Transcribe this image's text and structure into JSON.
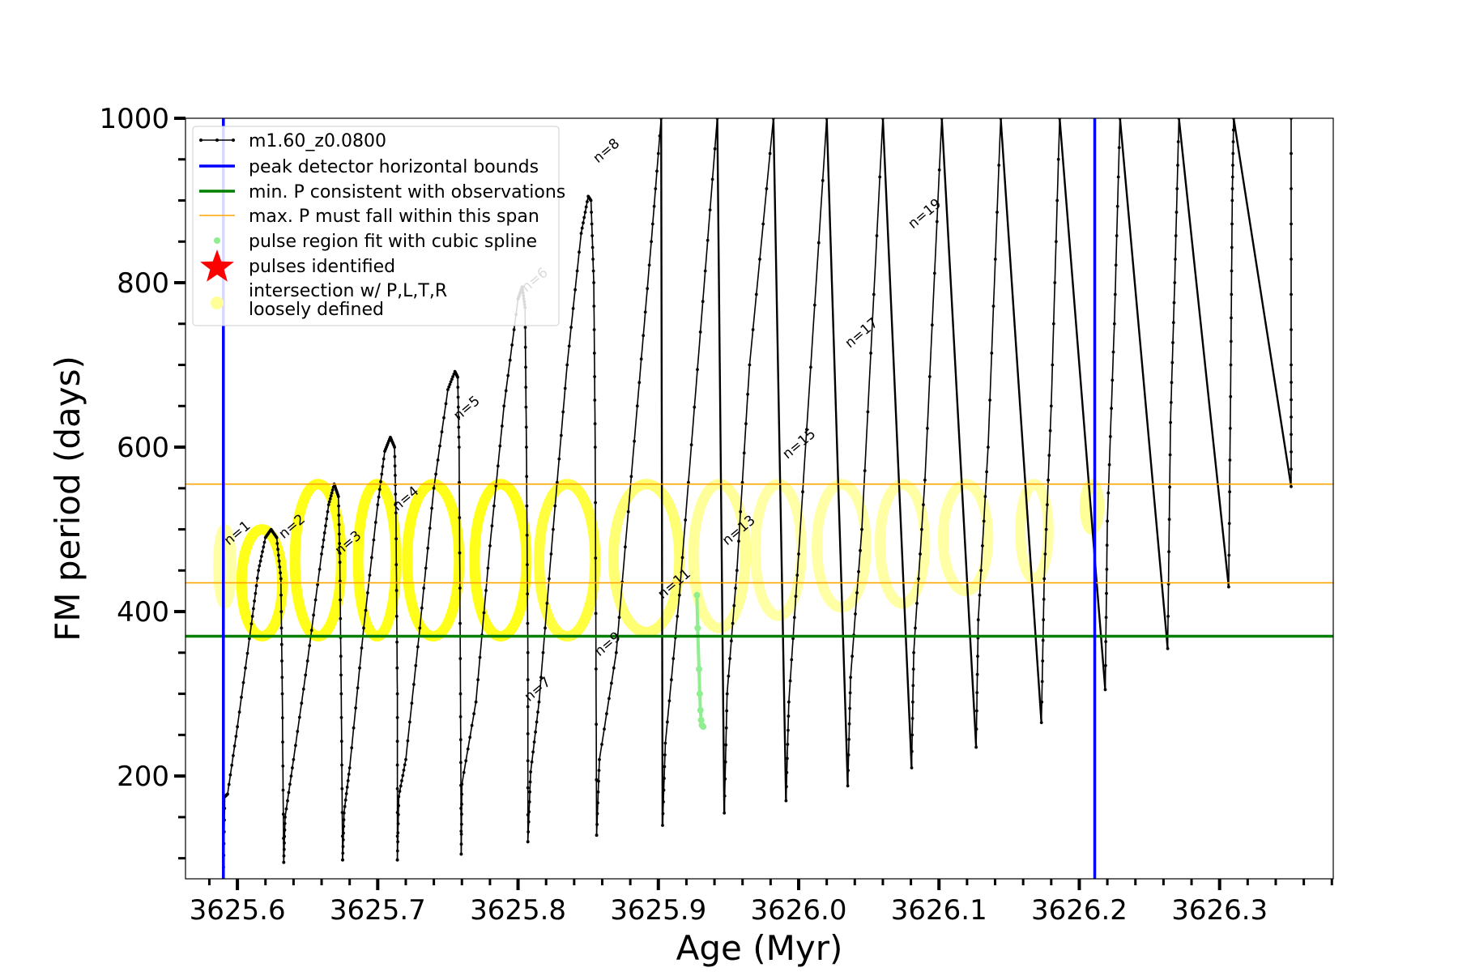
{
  "chart_data": {
    "type": "line",
    "title": "",
    "xlabel": "Age (Myr)",
    "ylabel": "FM period (days)",
    "xlim": [
      3625.563,
      3626.381
    ],
    "ylim": [
      75,
      1000
    ],
    "x_major_ticks": [
      3625.6,
      3625.7,
      3625.8,
      3625.9,
      3626.0,
      3626.1,
      3626.2,
      3626.3
    ],
    "x_tick_labels": [
      "3625.6",
      "3625.7",
      "3625.8",
      "3625.9",
      "3626.0",
      "3626.1",
      "3626.2",
      "3626.3"
    ],
    "x_minor_step": 0.02,
    "y_major_ticks": [
      200,
      400,
      600,
      800,
      1000
    ],
    "y_tick_labels": [
      "200",
      "400",
      "600",
      "800",
      "1000"
    ],
    "y_minor_step": 50,
    "grid": false,
    "legend_position": "top-left",
    "legend": [
      {
        "label": "m1.60_z0.0800",
        "kind": "line-marker",
        "color": "#000000"
      },
      {
        "label": "peak detector horizontal bounds",
        "kind": "line",
        "color": "#0000ff"
      },
      {
        "label": "min. P consistent with observations",
        "kind": "line",
        "color": "#008000"
      },
      {
        "label": "max. P must fall within this span",
        "kind": "line-thin",
        "color": "#ffa500"
      },
      {
        "label": "pulse region fit with cubic spline",
        "kind": "dot",
        "color": "#90ee90"
      },
      {
        "label": "pulses identified",
        "kind": "star",
        "color": "#ff0000"
      },
      {
        "label": "intersection w/ P,L,T,R",
        "label2": "loosely defined",
        "kind": "blob",
        "color": "#ffff99"
      }
    ],
    "reference_lines": {
      "vertical_blue": [
        3625.59,
        3626.211
      ],
      "horizontal_green": 370,
      "horizontal_orange": [
        435,
        555
      ]
    },
    "series": [
      {
        "name": "m1.60_z0.0800",
        "color": "#000000",
        "segments": [
          [
            [
              3625.59,
              75
            ],
            [
              3625.591,
              175
            ],
            [
              3625.593,
              178
            ],
            [
              3625.6,
              260
            ],
            [
              3625.61,
              385
            ],
            [
              3625.615,
              450
            ],
            [
              3625.62,
              490
            ],
            [
              3625.624,
              500
            ],
            [
              3625.628,
              490
            ],
            [
              3625.631,
              440
            ],
            [
              3625.632,
              300
            ],
            [
              3625.633,
              95
            ]
          ],
          [
            [
              3625.633,
              95
            ],
            [
              3625.634,
              150
            ],
            [
              3625.64,
              220
            ],
            [
              3625.65,
              340
            ],
            [
              3625.66,
              470
            ],
            [
              3625.665,
              530
            ],
            [
              3625.669,
              555
            ],
            [
              3625.672,
              540
            ],
            [
              3625.673,
              460
            ],
            [
              3625.674,
              300
            ],
            [
              3625.675,
              98
            ]
          ],
          [
            [
              3625.675,
              98
            ],
            [
              3625.676,
              155
            ],
            [
              3625.68,
              210
            ],
            [
              3625.69,
              380
            ],
            [
              3625.7,
              530
            ],
            [
              3625.705,
              595
            ],
            [
              3625.709,
              612
            ],
            [
              3625.712,
              600
            ],
            [
              3625.713,
              520
            ],
            [
              3625.714,
              300
            ],
            [
              3625.714,
              98
            ]
          ],
          [
            [
              3625.714,
              98
            ],
            [
              3625.715,
              175
            ],
            [
              3625.72,
              220
            ],
            [
              3625.73,
              380
            ],
            [
              3625.74,
              550
            ],
            [
              3625.75,
              670
            ],
            [
              3625.755,
              692
            ],
            [
              3625.757,
              685
            ],
            [
              3625.758,
              600
            ],
            [
              3625.759,
              300
            ],
            [
              3625.7595,
              105
            ]
          ],
          [
            [
              3625.7595,
              105
            ],
            [
              3625.76,
              190
            ],
            [
              3625.77,
              290
            ],
            [
              3625.78,
              480
            ],
            [
              3625.79,
              650
            ],
            [
              3625.8,
              780
            ],
            [
              3625.803,
              795
            ],
            [
              3625.805,
              770
            ],
            [
              3625.806,
              600
            ],
            [
              3625.807,
              350
            ],
            [
              3625.807,
              120
            ]
          ],
          [
            [
              3625.807,
              120
            ],
            [
              3625.809,
              205
            ],
            [
              3625.815,
              290
            ],
            [
              3625.825,
              500
            ],
            [
              3625.835,
              700
            ],
            [
              3625.845,
              860
            ],
            [
              3625.85,
              905
            ],
            [
              3625.852,
              900
            ],
            [
              3625.854,
              800
            ],
            [
              3625.855,
              600
            ],
            [
              3625.856,
              128
            ]
          ],
          [
            [
              3625.856,
              128
            ],
            [
              3625.858,
              220
            ],
            [
              3625.87,
              350
            ],
            [
              3625.885,
              650
            ],
            [
              3625.895,
              850
            ],
            [
              3625.902,
              1000
            ]
          ],
          [
            [
              3625.903,
              140
            ],
            [
              3625.905,
              240
            ],
            [
              3625.915,
              420
            ],
            [
              3625.93,
              740
            ],
            [
              3625.942,
              1000
            ]
          ],
          [
            [
              3625.947,
              155
            ],
            [
              3625.949,
              300
            ],
            [
              3625.956,
              450
            ],
            [
              3625.965,
              700
            ],
            [
              3625.982,
              1000
            ]
          ],
          [
            [
              3625.991,
              170
            ],
            [
              3625.993,
              290
            ],
            [
              3626.0,
              470
            ],
            [
              3626.02,
              1000
            ]
          ],
          [
            [
              3626.035,
              188
            ],
            [
              3626.037,
              320
            ],
            [
              3626.045,
              500
            ],
            [
              3626.06,
              1000
            ]
          ],
          [
            [
              3626.0805,
              210
            ],
            [
              3626.082,
              350
            ],
            [
              3626.09,
              560
            ],
            [
              3626.102,
              1000
            ]
          ],
          [
            [
              3626.1265,
              235
            ],
            [
              3626.128,
              390
            ],
            [
              3626.135,
              600
            ],
            [
              3626.144,
              1000
            ]
          ],
          [
            [
              3626.173,
              265
            ],
            [
              3626.175,
              440
            ],
            [
              3626.18,
              650
            ],
            [
              3626.186,
              1000
            ]
          ],
          [
            [
              3626.2185,
              305
            ],
            [
              3626.22,
              510
            ],
            [
              3626.225,
              750
            ],
            [
              3626.229,
              1000
            ]
          ],
          [
            [
              3626.263,
              355
            ],
            [
              3626.265,
              630
            ],
            [
              3626.268,
              800
            ],
            [
              3626.271,
              1000
            ]
          ],
          [
            [
              3626.3065,
              430
            ],
            [
              3626.308,
              700
            ],
            [
              3626.309,
              900
            ],
            [
              3626.31,
              1000
            ]
          ],
          [
            [
              3626.351,
              552
            ],
            [
              3626.351,
              700
            ],
            [
              3626.351,
              1000
            ]
          ]
        ],
        "descents": [
          [
            3625.902,
            1000,
            3625.903,
            140
          ],
          [
            3625.942,
            1000,
            3625.947,
            155
          ],
          [
            3625.982,
            1000,
            3625.991,
            170
          ],
          [
            3626.02,
            1000,
            3626.035,
            188
          ],
          [
            3626.06,
            1000,
            3626.0805,
            210
          ],
          [
            3626.102,
            1000,
            3626.1265,
            235
          ],
          [
            3626.144,
            1000,
            3626.173,
            265
          ],
          [
            3626.186,
            1000,
            3626.2185,
            305
          ],
          [
            3626.229,
            1000,
            3626.263,
            355
          ],
          [
            3626.271,
            1000,
            3626.3065,
            430
          ],
          [
            3626.31,
            1000,
            3626.351,
            552
          ]
        ]
      }
    ],
    "pulse_labels": [
      {
        "text": "n=1",
        "x": 3625.594,
        "y": 480
      },
      {
        "text": "n=2",
        "x": 3625.633,
        "y": 488
      },
      {
        "text": "n=3",
        "x": 3625.673,
        "y": 468
      },
      {
        "text": "n=4",
        "x": 3625.714,
        "y": 522
      },
      {
        "text": "n=5",
        "x": 3625.7575,
        "y": 632
      },
      {
        "text": "n=6",
        "x": 3625.806,
        "y": 788
      },
      {
        "text": "n=7",
        "x": 3625.808,
        "y": 290
      },
      {
        "text": "n=8",
        "x": 3625.857,
        "y": 945
      },
      {
        "text": "n=9",
        "x": 3625.858,
        "y": 345
      },
      {
        "text": "n=11",
        "x": 3625.903,
        "y": 415
      },
      {
        "text": "n=13",
        "x": 3625.949,
        "y": 480
      },
      {
        "text": "n=15",
        "x": 3625.992,
        "y": 585
      },
      {
        "text": "n=17",
        "x": 3626.0365,
        "y": 720
      },
      {
        "text": "n=19",
        "x": 3626.0815,
        "y": 865
      }
    ],
    "highlight_regions": [
      {
        "x0": 3625.589,
        "x1": 3625.593,
        "y0": 410,
        "y1": 500,
        "opacity": 0.35
      },
      {
        "x0": 3625.603,
        "x1": 3625.632,
        "y0": 370,
        "y1": 500,
        "opacity": 0.9
      },
      {
        "x0": 3625.641,
        "x1": 3625.674,
        "y0": 370,
        "y1": 555,
        "opacity": 0.9
      },
      {
        "x0": 3625.686,
        "x1": 3625.713,
        "y0": 370,
        "y1": 555,
        "opacity": 0.9
      },
      {
        "x0": 3625.721,
        "x1": 3625.758,
        "y0": 370,
        "y1": 555,
        "opacity": 0.9
      },
      {
        "x0": 3625.769,
        "x1": 3625.806,
        "y0": 370,
        "y1": 555,
        "opacity": 0.9
      },
      {
        "x0": 3625.815,
        "x1": 3625.855,
        "y0": 370,
        "y1": 555,
        "opacity": 0.75
      },
      {
        "x0": 3625.868,
        "x1": 3625.915,
        "y0": 375,
        "y1": 555,
        "opacity": 0.55
      },
      {
        "x0": 3625.925,
        "x1": 3625.962,
        "y0": 380,
        "y1": 555,
        "opacity": 0.4
      },
      {
        "x0": 3625.969,
        "x1": 3626.002,
        "y0": 395,
        "y1": 555,
        "opacity": 0.35
      },
      {
        "x0": 3626.013,
        "x1": 3626.048,
        "y0": 405,
        "y1": 555,
        "opacity": 0.35
      },
      {
        "x0": 3626.058,
        "x1": 3626.09,
        "y0": 410,
        "y1": 555,
        "opacity": 0.35
      },
      {
        "x0": 3626.103,
        "x1": 3626.135,
        "y0": 425,
        "y1": 555,
        "opacity": 0.35
      },
      {
        "x0": 3626.158,
        "x1": 3626.178,
        "y0": 440,
        "y1": 555,
        "opacity": 0.35
      },
      {
        "x0": 3626.204,
        "x1": 3626.214,
        "y0": 500,
        "y1": 555,
        "opacity": 0.4
      }
    ],
    "green_spline": [
      [
        3625.9275,
        420
      ],
      [
        3625.928,
        380
      ],
      [
        3625.929,
        330
      ],
      [
        3625.9295,
        300
      ],
      [
        3625.93,
        280
      ],
      [
        3625.9305,
        268
      ],
      [
        3625.931,
        262
      ],
      [
        3625.932,
        260
      ]
    ]
  }
}
